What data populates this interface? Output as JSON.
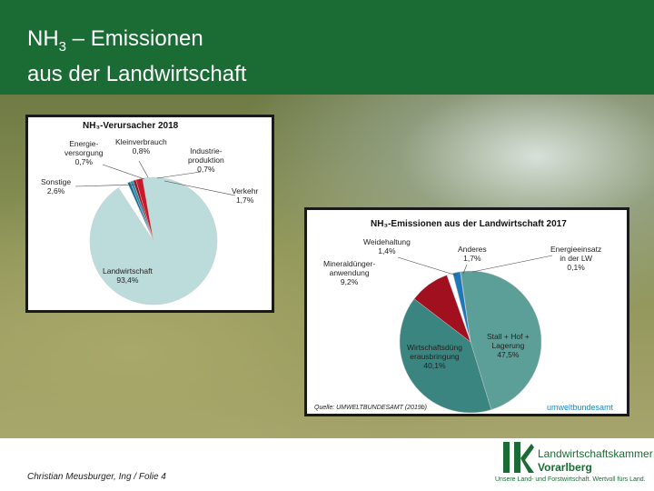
{
  "header": {
    "title_prefix": "NH",
    "title_sub": "3",
    "title_rest": " – Emissionen",
    "title_line2": "aus der Landwirtschaft",
    "bg_color": "#1a6b34"
  },
  "chart1": {
    "title": "NH₃-Verursacher 2018",
    "labels": {
      "energie": [
        "Energie-",
        "versorgung",
        "0,7%"
      ],
      "klein": [
        "Kleinverbrauch",
        "0,8%"
      ],
      "industrie": [
        "Industrie-",
        "produktion",
        "0,7%"
      ],
      "verkehr": [
        "Verkehr",
        "1,7%"
      ],
      "sonstige": [
        "Sonstige",
        "2,6%"
      ],
      "landwirtschaft": [
        "Landwirtschaft",
        "93,4%"
      ]
    }
  },
  "chart2": {
    "title": "NH₃-Emissionen aus der Landwirtschaft 2017",
    "labels": {
      "weide": [
        "Weidehaltung",
        "1,4%"
      ],
      "anderes": [
        "Anderes",
        "1,7%"
      ],
      "energie": [
        "Energieeinsatz",
        "in der LW",
        "0,1%"
      ],
      "mineral": [
        "Mineraldünger-",
        "anwendung",
        "9,2%"
      ],
      "stall": [
        "Stall + Hof +",
        "Lagerung",
        "47,5%"
      ],
      "wirtschaft": [
        "Wirtschaftsdüng",
        "erausbringung",
        "40,1%"
      ]
    },
    "source": "Quelle: UMWELTBUNDESAMT (2019b)",
    "brand_a": "umwelt",
    "brand_b": "bundesamt"
  },
  "chart_data": [
    {
      "type": "pie",
      "title": "NH₃-Verursacher 2018",
      "categories": [
        "Landwirtschaft",
        "Sonstige",
        "Energieversorgung",
        "Kleinverbrauch",
        "Industrieproduktion",
        "Verkehr"
      ],
      "values": [
        93.4,
        2.6,
        0.7,
        0.8,
        0.7,
        1.7
      ],
      "colors": [
        "#bcdcdc",
        "#ffffff",
        "#1a6a8e",
        "#2b8fb0",
        "#9a1020",
        "#c81a2a"
      ]
    },
    {
      "type": "pie",
      "title": "NH₃-Emissionen aus der Landwirtschaft 2017",
      "categories": [
        "Stall + Hof + Lagerung",
        "Wirtschaftsdüngerausbringung",
        "Mineraldüngeranwendung",
        "Weidehaltung",
        "Anderes",
        "Energieeinsatz in der LW"
      ],
      "values": [
        47.5,
        40.1,
        9.2,
        1.4,
        1.7,
        0.1
      ],
      "colors": [
        "#5c9f98",
        "#3a8580",
        "#a0101e",
        "#ffffff",
        "#1c78b8",
        "#1a3a6a"
      ]
    }
  ],
  "footer": {
    "author": "Christian Meusburger, Ing / Folie 4"
  },
  "logo": {
    "line1": "Landwirtschaftskammer",
    "line2": "Vorarlberg",
    "tagline": "Unsere Land- und Forstwirtschaft. Wertvoll fürs Land."
  }
}
